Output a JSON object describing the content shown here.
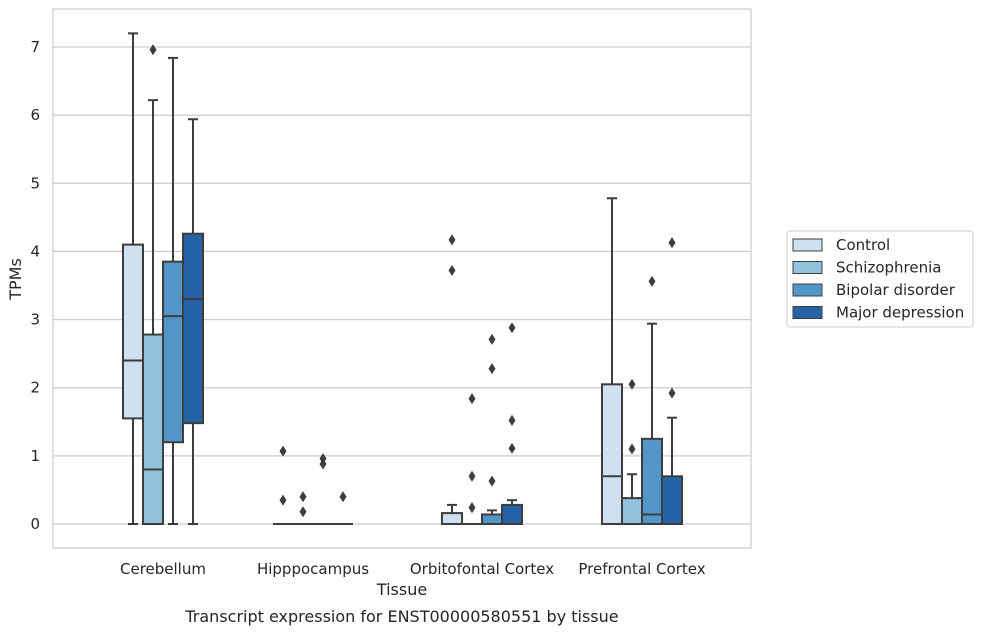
{
  "chart_data": {
    "type": "boxplot",
    "caption": "Transcript expression for ENST00000580551 by tissue",
    "xlabel": "Tissue",
    "ylabel": "TPMs",
    "ylim": [
      -0.35,
      7.55
    ],
    "yticks": [
      0,
      1,
      2,
      3,
      4,
      5,
      6,
      7
    ],
    "grid": "horizontal",
    "legend_position": "right",
    "categories": [
      "Cerebellum",
      "Hipppocampus",
      "Orbitofontal Cortex",
      "Prefrontal Cortex"
    ],
    "series": [
      {
        "name": "Control",
        "color": "#cfe1f1",
        "boxes": [
          {
            "category": "Cerebellum",
            "whislo": 0,
            "q1": 1.55,
            "median": 2.4,
            "q3": 4.1,
            "whishi": 7.2,
            "fliers": []
          },
          {
            "category": "Hipppocampus",
            "whislo": 0,
            "q1": 0,
            "median": 0,
            "q3": 0,
            "whishi": 0,
            "fliers": [
              1.07,
              0.35
            ]
          },
          {
            "category": "Orbitofontal Cortex",
            "whislo": 0,
            "q1": 0,
            "median": 0,
            "q3": 0.16,
            "whishi": 0.28,
            "fliers": [
              4.17,
              3.72
            ]
          },
          {
            "category": "Prefrontal Cortex",
            "whislo": 0,
            "q1": 0,
            "median": 0.7,
            "q3": 2.05,
            "whishi": 4.78,
            "fliers": []
          }
        ]
      },
      {
        "name": "Schizophrenia",
        "color": "#94c1de",
        "boxes": [
          {
            "category": "Cerebellum",
            "whislo": 0,
            "q1": 0,
            "median": 0.8,
            "q3": 2.78,
            "whishi": 6.22,
            "fliers": [
              6.96
            ]
          },
          {
            "category": "Hipppocampus",
            "whislo": 0,
            "q1": 0,
            "median": 0,
            "q3": 0,
            "whishi": 0,
            "fliers": [
              0.4,
              0.18
            ]
          },
          {
            "category": "Orbitofontal Cortex",
            "whislo": 0,
            "q1": 0,
            "median": 0,
            "q3": 0,
            "whishi": 0,
            "fliers": [
              1.84,
              0.7,
              0.24
            ]
          },
          {
            "category": "Prefrontal Cortex",
            "whislo": 0,
            "q1": 0,
            "median": 0,
            "q3": 0.38,
            "whishi": 0.73,
            "fliers": [
              2.05,
              1.1
            ]
          }
        ]
      },
      {
        "name": "Bipolar disorder",
        "color": "#5296c8",
        "boxes": [
          {
            "category": "Cerebellum",
            "whislo": 0,
            "q1": 1.2,
            "median": 3.05,
            "q3": 3.85,
            "whishi": 6.84,
            "fliers": []
          },
          {
            "category": "Hipppocampus",
            "whislo": 0,
            "q1": 0,
            "median": 0,
            "q3": 0,
            "whishi": 0,
            "fliers": [
              0.96,
              0.88
            ]
          },
          {
            "category": "Orbitofontal Cortex",
            "whislo": 0,
            "q1": 0,
            "median": 0,
            "q3": 0.14,
            "whishi": 0.2,
            "fliers": [
              2.71,
              2.28,
              0.63
            ]
          },
          {
            "category": "Prefrontal Cortex",
            "whislo": 0,
            "q1": 0,
            "median": 0.14,
            "q3": 1.25,
            "whishi": 2.94,
            "fliers": [
              3.56
            ]
          }
        ]
      },
      {
        "name": "Major depression",
        "color": "#2563a6",
        "boxes": [
          {
            "category": "Cerebellum",
            "whislo": 0,
            "q1": 1.48,
            "median": 3.3,
            "q3": 4.26,
            "whishi": 5.94,
            "fliers": []
          },
          {
            "category": "Hipppocampus",
            "whislo": 0,
            "q1": 0,
            "median": 0,
            "q3": 0,
            "whishi": 0,
            "fliers": [
              0.4
            ]
          },
          {
            "category": "Orbitofontal Cortex",
            "whislo": 0,
            "q1": 0,
            "median": 0,
            "q3": 0.28,
            "whishi": 0.35,
            "fliers": [
              2.88,
              1.52,
              1.11
            ]
          },
          {
            "category": "Prefrontal Cortex",
            "whislo": 0,
            "q1": 0,
            "median": 0,
            "q3": 0.7,
            "whishi": 1.56,
            "fliers": [
              4.13,
              1.92
            ]
          }
        ]
      }
    ]
  }
}
